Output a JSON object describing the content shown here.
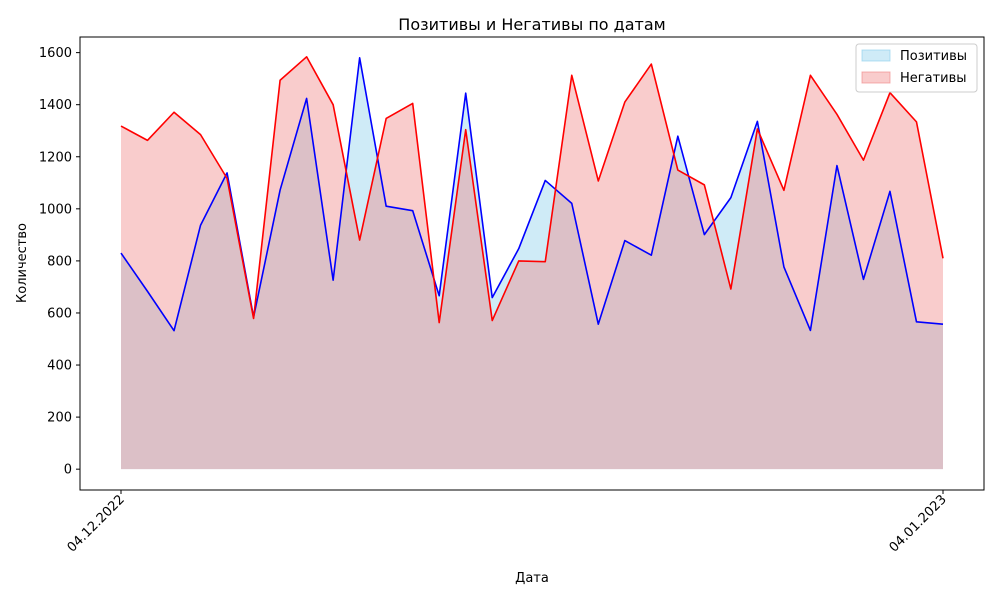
{
  "chart_data": {
    "type": "area",
    "title": "Позитивы и Негативы по датам",
    "xlabel": "Дата",
    "ylabel": "Количество",
    "ylim": [
      -80,
      1660
    ],
    "yticks": [
      0,
      200,
      400,
      600,
      800,
      1000,
      1200,
      1400,
      1600
    ],
    "xtick_labels": [
      "04.12.2022",
      "04.01.2023"
    ],
    "x": [
      "04.12.2022",
      "05.12.2022",
      "06.12.2022",
      "07.12.2022",
      "08.12.2022",
      "09.12.2022",
      "10.12.2022",
      "11.12.2022",
      "12.12.2022",
      "13.12.2022",
      "14.12.2022",
      "15.12.2022",
      "16.12.2022",
      "17.12.2022",
      "18.12.2022",
      "19.12.2022",
      "20.12.2022",
      "21.12.2022",
      "22.12.2022",
      "23.12.2022",
      "24.12.2022",
      "25.12.2022",
      "26.12.2022",
      "27.12.2022",
      "28.12.2022",
      "29.12.2022",
      "30.12.2022",
      "31.12.2022",
      "01.01.2023",
      "02.01.2023",
      "03.01.2023",
      "04.01.2023"
    ],
    "grid": false,
    "legend_position": "top-right",
    "series": [
      {
        "name": "Позитивы",
        "line_color": "#0000ff",
        "fill_color": "#87ceeb",
        "values": [
          830,
          683,
          532,
          937,
          1138,
          584,
          1072,
          1424,
          726,
          1580,
          1010,
          993,
          666,
          1444,
          659,
          847,
          1109,
          1021,
          557,
          878,
          822,
          1279,
          901,
          1043,
          1336,
          777,
          533,
          1166,
          729,
          1067,
          566,
          557
        ]
      },
      {
        "name": "Негативы",
        "line_color": "#ff0000",
        "fill_color": "#f08080",
        "values": [
          1318,
          1263,
          1371,
          1285,
          1117,
          579,
          1494,
          1584,
          1400,
          880,
          1347,
          1405,
          563,
          1304,
          571,
          800,
          797,
          1513,
          1107,
          1410,
          1556,
          1149,
          1092,
          692,
          1307,
          1071,
          1513,
          1363,
          1187,
          1446,
          1334,
          810
        ]
      }
    ]
  }
}
